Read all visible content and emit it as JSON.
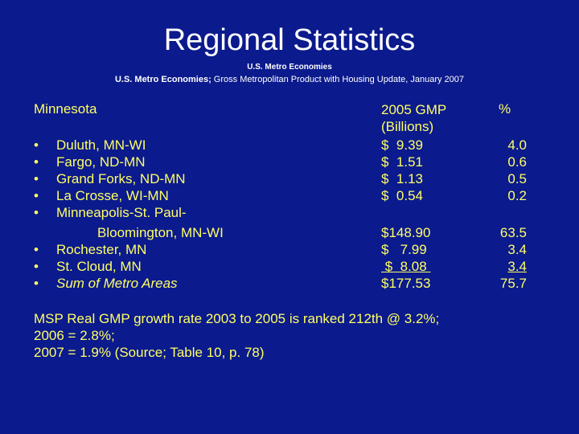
{
  "title": "Regional Statistics",
  "source_line_1": "U.S. Metro Economies",
  "source_line_2_bold": "U.S. Metro Economies;",
  "source_line_2_rest": " Gross Metropolitan Product with Housing Update, January 2007",
  "table": {
    "region_heading": "Minnesota",
    "gmp_heading_line1": "2005 GMP",
    "gmp_heading_line2": "(Billions)",
    "pct_heading": "%",
    "bullet_char": "•",
    "rows": [
      {
        "metro": "Duluth, MN-WI",
        "gmp": "$  9.39",
        "pct": "4.0"
      },
      {
        "metro": "Fargo, ND-MN",
        "gmp": "$  1.51",
        "pct": "0.6"
      },
      {
        "metro": "Grand Forks, ND-MN",
        "gmp": "$  1.13",
        "pct": "0.5"
      },
      {
        "metro": "La Crosse, WI-MN",
        "gmp": "$  0.54",
        "pct": "0.2"
      },
      {
        "metro": "Minneapolis-St. Paul-",
        "metro_cont": "Bloomington, MN-WI",
        "gmp": "$148.90",
        "pct": "63.5"
      },
      {
        "metro": "Rochester, MN",
        "gmp": "$   7.99",
        "pct": "3.4"
      },
      {
        "metro": "St. Cloud, MN",
        "gmp": " $  8.08 ",
        "pct": "3.4"
      },
      {
        "metro": "Sum of Metro Areas",
        "gmp": "$177.53",
        "pct": "75.7"
      }
    ]
  },
  "notes": [
    "MSP Real GMP growth rate 2003 to 2005 is ranked 212th @ 3.2%;",
    "2006 = 2.8%;",
    "2007 = 1.9% (Source; Table 10, p. 78)"
  ]
}
